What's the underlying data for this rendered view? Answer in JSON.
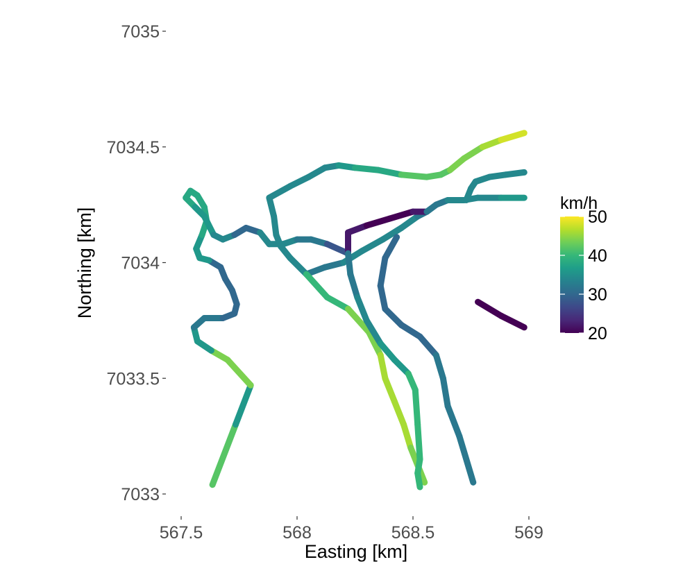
{
  "chart_data": {
    "type": "line",
    "title": "",
    "xlabel": "Easting [km]",
    "ylabel": "Northing [km]",
    "xlim": [
      567.45,
      569.0
    ],
    "ylim": [
      7032.96,
      7035.0
    ],
    "x_ticks": [
      {
        "value": 567.5,
        "label": "567.5"
      },
      {
        "value": 568.0,
        "label": "568"
      },
      {
        "value": 568.5,
        "label": "568.5"
      },
      {
        "value": 569.0,
        "label": "569"
      }
    ],
    "y_ticks": [
      {
        "value": 7033.0,
        "label": "7033"
      },
      {
        "value": 7033.5,
        "label": "7033.5"
      },
      {
        "value": 7034.0,
        "label": "7034"
      },
      {
        "value": 7034.5,
        "label": "7034.5"
      },
      {
        "value": 7035.0,
        "label": "7035"
      }
    ],
    "grid": false,
    "legend": {
      "title": "km/h",
      "position": "right",
      "min": 20,
      "max": 50,
      "breaks": [
        {
          "value": 20,
          "label": "20"
        },
        {
          "value": 30,
          "label": "30"
        },
        {
          "value": 40,
          "label": "40"
        },
        {
          "value": 50,
          "label": "50"
        }
      ],
      "colormap": [
        "#440154",
        "#482878",
        "#3e4989",
        "#31688e",
        "#26828e",
        "#1f9e89",
        "#35b779",
        "#6ece58",
        "#b5de2b",
        "#fde725"
      ]
    },
    "series": [
      {
        "points": [
          [
            567.635,
            7033.04
          ],
          [
            567.735,
            7033.3
          ],
          [
            567.8,
            7033.47
          ]
        ],
        "speed": [
          42,
          36
        ]
      },
      {
        "points": [
          [
            567.8,
            7033.47
          ],
          [
            567.7,
            7033.58
          ],
          [
            567.63,
            7033.62
          ]
        ],
        "speed": [
          44
        ]
      },
      {
        "points": [
          [
            567.63,
            7033.62
          ],
          [
            567.57,
            7033.66
          ],
          [
            567.555,
            7033.72
          ],
          [
            567.6,
            7033.76
          ],
          [
            567.68,
            7033.76
          ],
          [
            567.73,
            7033.78
          ],
          [
            567.74,
            7033.82
          ],
          [
            567.72,
            7033.88
          ],
          [
            567.69,
            7033.93
          ],
          [
            567.67,
            7033.98
          ],
          [
            567.62,
            7034.01
          ]
        ],
        "speed": [
          36,
          32,
          30,
          30,
          30
        ]
      },
      {
        "points": [
          [
            567.62,
            7034.01
          ],
          [
            567.58,
            7034.02
          ],
          [
            567.565,
            7034.06
          ],
          [
            567.59,
            7034.12
          ],
          [
            567.61,
            7034.18
          ],
          [
            567.6,
            7034.24
          ],
          [
            567.57,
            7034.29
          ],
          [
            567.54,
            7034.31
          ],
          [
            567.52,
            7034.28
          ],
          [
            567.56,
            7034.24
          ],
          [
            567.6,
            7034.2
          ],
          [
            567.64,
            7034.12
          ]
        ],
        "speed": [
          36,
          38,
          38,
          36
        ]
      },
      {
        "points": [
          [
            567.64,
            7034.12
          ],
          [
            567.68,
            7034.1
          ],
          [
            567.73,
            7034.12
          ],
          [
            567.78,
            7034.15
          ],
          [
            567.84,
            7034.13
          ],
          [
            567.88,
            7034.08
          ]
        ],
        "speed": [
          34,
          30,
          34
        ]
      },
      {
        "points": [
          [
            567.88,
            7034.08
          ],
          [
            567.94,
            7034.08
          ],
          [
            568.0,
            7034.1
          ],
          [
            568.06,
            7034.1
          ],
          [
            568.13,
            7034.08
          ],
          [
            568.22,
            7034.04
          ]
        ],
        "speed": [
          34,
          32,
          28
        ]
      },
      {
        "points": [
          [
            567.88,
            7034.28
          ],
          [
            567.9,
            7034.2
          ],
          [
            567.91,
            7034.12
          ],
          [
            567.93,
            7034.07
          ],
          [
            567.97,
            7034.02
          ],
          [
            568.04,
            7033.95
          ]
        ],
        "speed": [
          34,
          34,
          34
        ]
      },
      {
        "points": [
          [
            567.88,
            7034.28
          ],
          [
            567.97,
            7034.33
          ],
          [
            568.05,
            7034.37
          ],
          [
            568.12,
            7034.41
          ],
          [
            568.18,
            7034.42
          ],
          [
            568.25,
            7034.41
          ],
          [
            568.35,
            7034.4
          ],
          [
            568.45,
            7034.38
          ],
          [
            568.56,
            7034.37
          ],
          [
            568.62,
            7034.38
          ],
          [
            568.66,
            7034.4
          ]
        ],
        "speed": [
          34,
          34,
          36,
          38,
          42,
          42
        ]
      },
      {
        "points": [
          [
            568.66,
            7034.4
          ],
          [
            568.72,
            7034.45
          ],
          [
            568.8,
            7034.5
          ],
          [
            568.88,
            7034.53
          ],
          [
            568.98,
            7034.56
          ]
        ],
        "speed": [
          44,
          46,
          48
        ]
      },
      {
        "points": [
          [
            568.04,
            7033.95
          ],
          [
            568.12,
            7033.98
          ],
          [
            568.2,
            7034.0
          ],
          [
            568.28,
            7034.05
          ],
          [
            568.37,
            7034.1
          ],
          [
            568.45,
            7034.15
          ],
          [
            568.52,
            7034.2
          ],
          [
            568.56,
            7034.22
          ]
        ],
        "speed": [
          32,
          34,
          34,
          32
        ]
      },
      {
        "points": [
          [
            568.22,
            7034.04
          ],
          [
            568.22,
            7034.13
          ],
          [
            568.3,
            7034.16
          ],
          [
            568.4,
            7034.19
          ],
          [
            568.5,
            7034.22
          ],
          [
            568.56,
            7034.22
          ]
        ],
        "speed": [
          22,
          20,
          20,
          22
        ]
      },
      {
        "points": [
          [
            568.56,
            7034.22
          ],
          [
            568.6,
            7034.25
          ],
          [
            568.65,
            7034.27
          ],
          [
            568.72,
            7034.27
          ],
          [
            568.78,
            7034.28
          ],
          [
            568.88,
            7034.28
          ],
          [
            568.98,
            7034.28
          ]
        ],
        "speed": [
          32,
          34,
          34,
          36
        ]
      },
      {
        "points": [
          [
            568.73,
            7034.27
          ],
          [
            568.75,
            7034.32
          ],
          [
            568.77,
            7034.35
          ],
          [
            568.83,
            7034.37
          ],
          [
            568.9,
            7034.38
          ],
          [
            568.98,
            7034.39
          ]
        ],
        "speed": [
          34,
          34,
          34
        ]
      },
      {
        "points": [
          [
            568.04,
            7033.95
          ],
          [
            568.13,
            7033.85
          ],
          [
            568.22,
            7033.8
          ],
          [
            568.31,
            7033.7
          ],
          [
            568.36,
            7033.6
          ],
          [
            568.38,
            7033.5
          ],
          [
            568.42,
            7033.4
          ],
          [
            568.46,
            7033.3
          ],
          [
            568.49,
            7033.2
          ],
          [
            568.53,
            7033.1
          ],
          [
            568.55,
            7033.05
          ]
        ],
        "speed": [
          40,
          44,
          46,
          46,
          44
        ]
      },
      {
        "points": [
          [
            568.22,
            7034.04
          ],
          [
            568.23,
            7033.95
          ],
          [
            568.26,
            7033.85
          ],
          [
            568.3,
            7033.75
          ],
          [
            568.36,
            7033.65
          ],
          [
            568.42,
            7033.58
          ],
          [
            568.48,
            7033.52
          ],
          [
            568.51,
            7033.45
          ],
          [
            568.52,
            7033.3
          ],
          [
            568.53,
            7033.15
          ],
          [
            568.52,
            7033.09
          ],
          [
            568.53,
            7033.03
          ]
        ],
        "speed": [
          32,
          34,
          36,
          40,
          40,
          40
        ]
      },
      {
        "points": [
          [
            568.43,
            7034.11
          ],
          [
            568.38,
            7034.02
          ],
          [
            568.36,
            7033.9
          ],
          [
            568.38,
            7033.8
          ],
          [
            568.45,
            7033.73
          ],
          [
            568.53,
            7033.68
          ],
          [
            568.6,
            7033.6
          ],
          [
            568.63,
            7033.5
          ],
          [
            568.65,
            7033.38
          ],
          [
            568.7,
            7033.25
          ],
          [
            568.76,
            7033.05
          ]
        ],
        "speed": [
          30,
          30,
          30,
          32,
          32
        ]
      },
      {
        "points": [
          [
            568.78,
            7033.83
          ],
          [
            568.88,
            7033.77
          ],
          [
            568.98,
            7033.72
          ]
        ],
        "speed": [
          20,
          20
        ]
      }
    ]
  }
}
